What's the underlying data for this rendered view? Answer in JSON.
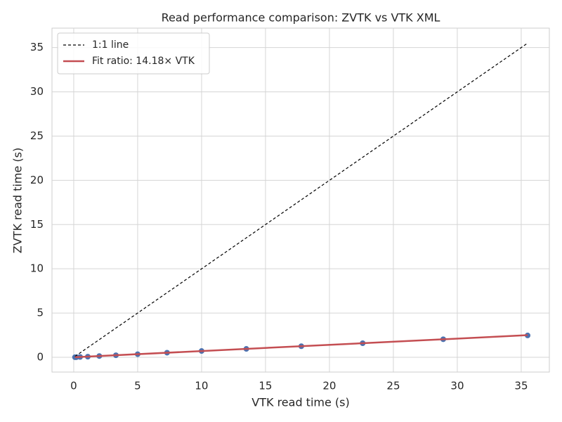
{
  "chart_data": {
    "type": "scatter",
    "title": "Read performance comparison: ZVTK vs VTK XML",
    "xlabel": "VTK read time (s)",
    "ylabel": "ZVTK read time (s)",
    "xlim": [
      -1.7,
      37.2
    ],
    "ylim": [
      -1.67,
      37.2
    ],
    "xticks": [
      0,
      5,
      10,
      15,
      20,
      25,
      30,
      35
    ],
    "yticks": [
      0,
      5,
      10,
      15,
      20,
      25,
      30,
      35
    ],
    "grid": true,
    "legend": "upper left",
    "series": [
      {
        "type": "scatter",
        "color": "#4c72b0",
        "x": [
          0.1,
          0.2,
          0.5,
          1.1,
          2.0,
          3.3,
          5.0,
          7.3,
          10.0,
          13.5,
          17.8,
          22.6,
          28.9,
          35.5
        ],
        "values": [
          0.01,
          0.01,
          0.04,
          0.07,
          0.14,
          0.23,
          0.35,
          0.52,
          0.71,
          0.95,
          1.25,
          1.59,
          2.04,
          2.47
        ]
      },
      {
        "type": "line",
        "name": "1:1 line",
        "color": "#000000",
        "dashed": true,
        "x": [
          0.1,
          35.5
        ],
        "values": [
          0.1,
          35.5
        ]
      },
      {
        "type": "line",
        "name": "Fit ratio: 14.18× VTK",
        "color": "#c44e52",
        "dashed": false,
        "x": [
          0.1,
          35.5
        ],
        "values": [
          0.007,
          2.5
        ]
      }
    ]
  }
}
